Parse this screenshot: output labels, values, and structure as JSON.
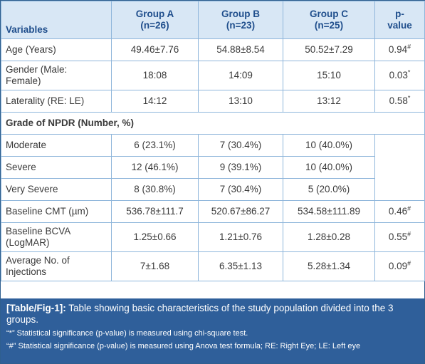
{
  "header": {
    "variables": "Variables",
    "group_a": "Group A",
    "group_a_n": "(n=26)",
    "group_b": "Group B",
    "group_b_n": "(n=23)",
    "group_c": "Group C",
    "group_c_n": "(n=25)",
    "p_value_1": "p-",
    "p_value_2": "value"
  },
  "rows": {
    "age": {
      "label": "Age (Years)",
      "a": "49.46±7.76",
      "b": "54.88±8.54",
      "c": "50.52±7.29",
      "p": "0.94",
      "mark": "#"
    },
    "gender": {
      "label_1": "Gender (Male:",
      "label_2": "Female)",
      "a": "18:08",
      "b": "14:09",
      "c": "15:10",
      "p": "0.03",
      "mark": "*"
    },
    "laterality": {
      "label": "Laterality (RE: LE)",
      "a": "14:12",
      "b": "13:10",
      "c": "13:12",
      "p": "0.58",
      "mark": "*"
    },
    "npdr_section": "Grade of NPDR (Number, %)",
    "moderate": {
      "label": "Moderate",
      "a": "6 (23.1%)",
      "b": "7 (30.4%)",
      "c": "10 (40.0%)"
    },
    "severe": {
      "label": "Severe",
      "a": "12 (46.1%)",
      "b": "9 (39.1%)",
      "c": "10 (40.0%)"
    },
    "very_severe": {
      "label": "Very Severe",
      "a": "8 (30.8%)",
      "b": "7 (30.4%)",
      "c": "5 (20.0%)"
    },
    "cmt": {
      "label": "Baseline CMT (µm)",
      "a": "536.78±111.7",
      "b": "520.67±86.27",
      "c": "534.58±111.89",
      "p": "0.46",
      "mark": "#"
    },
    "bcva": {
      "label_1": "Baseline BCVA",
      "label_2": "(LogMAR)",
      "a": "1.25±0.66",
      "b": "1.21±0.76",
      "c": "1.28±0.28",
      "p": "0.55",
      "mark": "#"
    },
    "injections": {
      "label_1": "Average No. of",
      "label_2": "Injections",
      "a": "7±1.68",
      "b": "6.35±1.13",
      "c": "5.28±1.34",
      "p": "0.09",
      "mark": "#"
    }
  },
  "caption": {
    "label": "[Table/Fig-1]:",
    "text": " Table showing basic characteristics of the study population divided into the 3 groups.",
    "note_star": "“*” Statistical significance (p-value) is measured using chi-square test.",
    "note_hash": "“#” Statistical significance (p-value) is measured using Anova test formula; RE: Right Eye; LE: Left eye"
  }
}
